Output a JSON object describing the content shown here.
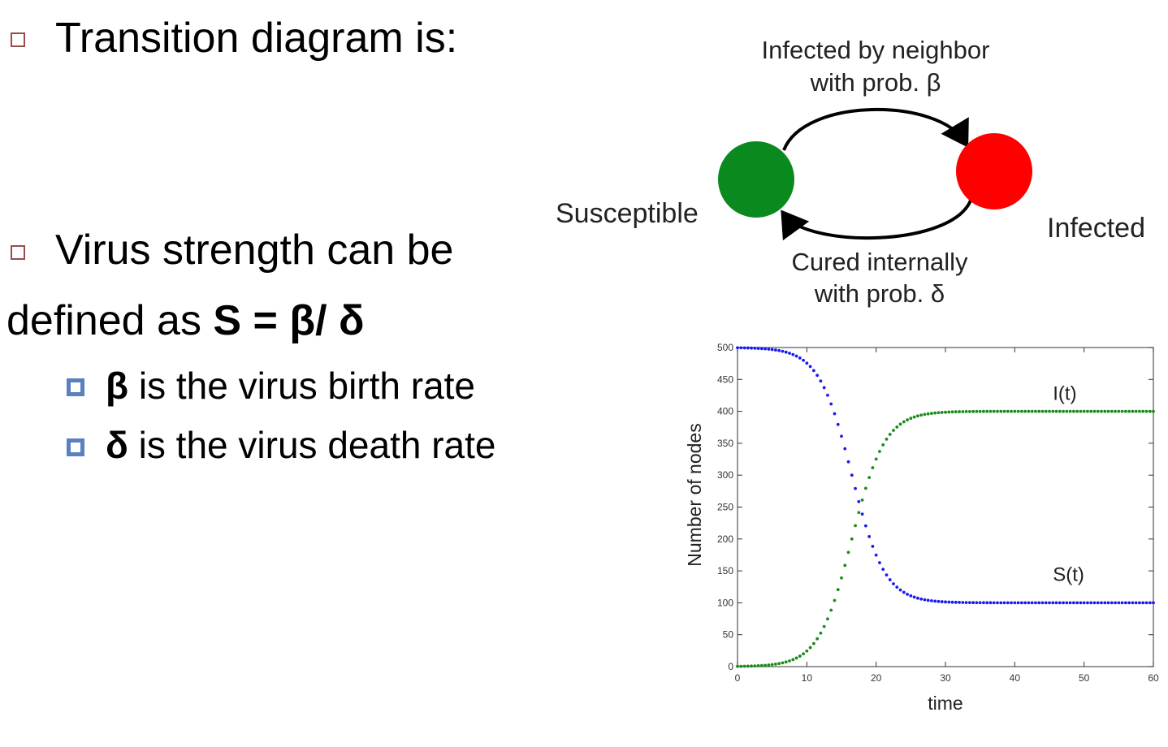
{
  "slide": {
    "bullet1": "Transition diagram is:",
    "bullet2_line1": "Virus strength can be",
    "bullet2_line2_prefix": "defined as ",
    "formula": "S = β/ δ",
    "sub1_sym": "β",
    "sub1_text": " is the virus birth rate",
    "sub2_sym": "δ",
    "sub2_text": " is the virus death rate"
  },
  "diagram": {
    "top_label_1": "Infected by neighbor",
    "top_label_2": "with prob. β",
    "bottom_label_1": "Cured internally",
    "bottom_label_2": "with prob. δ",
    "susceptible": "Susceptible",
    "infected": "Infected",
    "colors": {
      "susceptible": "#0a8a1e",
      "infected": "#ff0000"
    }
  },
  "chart_data": {
    "type": "scatter",
    "xlabel": "time",
    "ylabel": "Number of nodes",
    "xlim": [
      0,
      60
    ],
    "ylim": [
      0,
      500
    ],
    "xticks": [
      0,
      10,
      20,
      30,
      40,
      50,
      60
    ],
    "yticks": [
      0,
      50,
      100,
      150,
      200,
      250,
      300,
      350,
      400,
      450,
      500
    ],
    "series": [
      {
        "name": "I(t)",
        "color": "#1a8a1a",
        "curve": "logistic",
        "start": 0,
        "end": 400,
        "midpoint": 16.5,
        "rate": 0.42
      },
      {
        "name": "S(t)",
        "color": "#1a1aee",
        "curve": "logistic",
        "start": 500,
        "end": 100,
        "midpoint": 16.5,
        "rate": 0.42
      }
    ],
    "sample_step": 0.5
  }
}
